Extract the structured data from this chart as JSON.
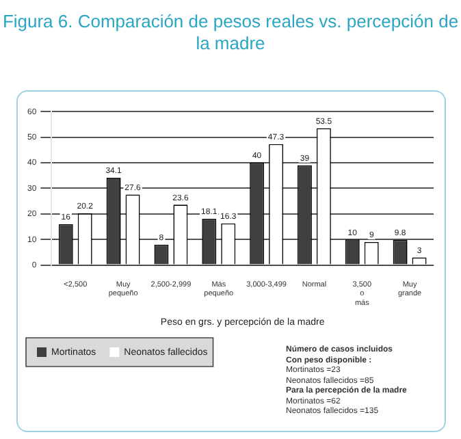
{
  "chart_data": {
    "type": "bar",
    "title": "Figura 6. Comparación de pesos reales vs. percepción de la madre",
    "xlabel": "Peso en grs. y percepción de la madre",
    "categories": [
      "<2,500",
      "Muy pequeño",
      "2,500-2,999",
      "Más pequeño",
      "3,000-3,499",
      "Normal",
      "3,500 o más",
      "Muy grande"
    ],
    "series": [
      {
        "name": "Mortinatos",
        "color": "#404040",
        "values": [
          16,
          34.1,
          8,
          18.1,
          40,
          39,
          10,
          9.8
        ]
      },
      {
        "name": "Neonatos fallecidos",
        "color": "#ffffff",
        "values": [
          20.2,
          27.6,
          23.6,
          16.3,
          47.3,
          53.5,
          9,
          3
        ]
      }
    ],
    "ylim": [
      0,
      60
    ],
    "yticks": [
      0,
      10,
      20,
      30,
      40,
      50,
      60
    ],
    "grid": "y",
    "legend": "bottom",
    "data_labels": true,
    "annotations": [
      "Número de casos incluidos",
      "Con peso disponible :",
      "Mortinatos =23",
      "Neonatos fallecidos =85",
      "Para la percepción de la madre",
      "Mortinatos =62",
      "Neonatos fallecidos =135"
    ]
  }
}
